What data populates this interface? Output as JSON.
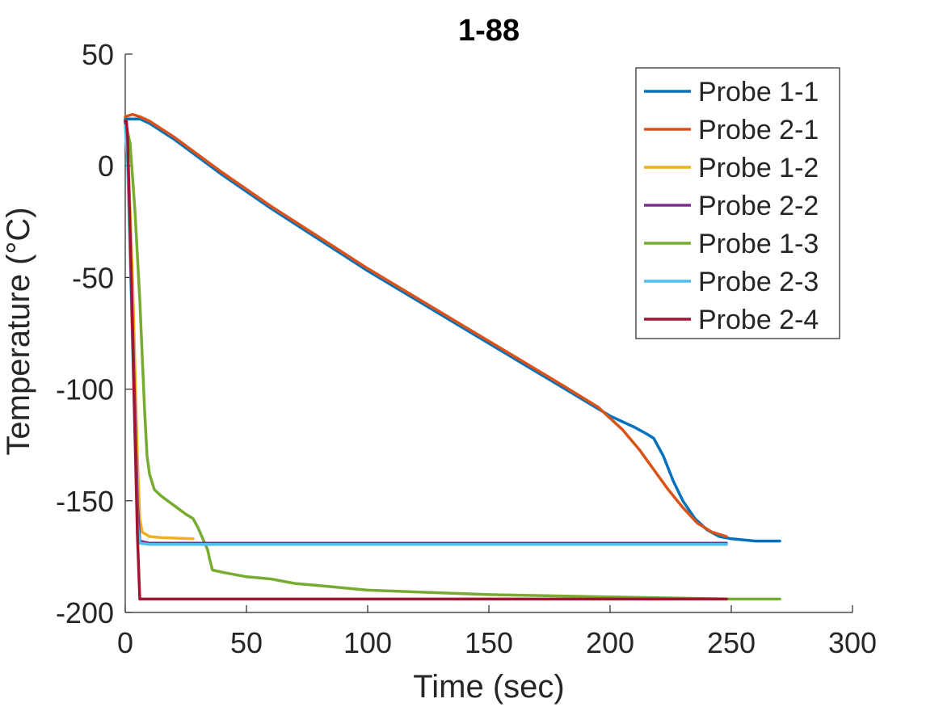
{
  "chart_data": {
    "type": "line",
    "title": "1-88",
    "xlabel": "Time (sec)",
    "ylabel": "Temperature (°C)",
    "xlim": [
      0,
      300
    ],
    "ylim": [
      -200,
      50
    ],
    "xticks": [
      0,
      50,
      100,
      150,
      200,
      250,
      300
    ],
    "yticks": [
      50,
      0,
      -50,
      -100,
      -150,
      -200
    ],
    "grid": false,
    "legend_position": "top-right",
    "series": [
      {
        "name": "Probe 1-1",
        "color": "#0072BD",
        "x": [
          0,
          3,
          6,
          10,
          20,
          40,
          60,
          80,
          100,
          120,
          140,
          160,
          180,
          200,
          210,
          215,
          218,
          222,
          226,
          230,
          235,
          240,
          245,
          250,
          260,
          270
        ],
        "y": [
          21,
          21,
          21,
          19,
          12,
          -4,
          -19,
          -33,
          -47,
          -60,
          -73,
          -86,
          -99,
          -112,
          -117,
          -120,
          -122,
          -130,
          -141,
          -150,
          -158,
          -163,
          -166,
          -167,
          -168,
          -168
        ]
      },
      {
        "name": "Probe 2-1",
        "color": "#D95319",
        "x": [
          0,
          3,
          6,
          10,
          20,
          40,
          60,
          80,
          100,
          120,
          140,
          160,
          180,
          195,
          205,
          212,
          218,
          224,
          230,
          236,
          242,
          248
        ],
        "y": [
          22,
          23,
          22,
          20,
          13,
          -3,
          -18,
          -32,
          -46,
          -59,
          -72,
          -85,
          -98,
          -108,
          -118,
          -127,
          -136,
          -145,
          -153,
          -160,
          -164,
          -166
        ]
      },
      {
        "name": "Probe 1-2",
        "color": "#EDB120",
        "x": [
          0,
          1,
          2,
          3,
          4,
          5,
          6,
          7,
          10,
          15,
          28
        ],
        "y": [
          20,
          5,
          -20,
          -50,
          -90,
          -130,
          -158,
          -164,
          -166,
          -166.5,
          -167
        ]
      },
      {
        "name": "Probe 2-2",
        "color": "#7E2F8E",
        "x": [
          0,
          1,
          2,
          3,
          4,
          5,
          6,
          10,
          100,
          200,
          248
        ],
        "y": [
          20,
          3,
          -30,
          -70,
          -110,
          -150,
          -168,
          -169,
          -169,
          -169,
          -169
        ]
      },
      {
        "name": "Probe 1-3",
        "color": "#77AC30",
        "x": [
          0,
          2,
          4,
          6,
          8,
          9,
          10,
          12,
          15,
          20,
          25,
          28,
          30,
          32,
          34,
          35,
          36,
          40,
          50,
          60,
          70,
          80,
          100,
          150,
          200,
          250,
          270
        ],
        "y": [
          20,
          10,
          -20,
          -60,
          -110,
          -130,
          -138,
          -145,
          -148,
          -152,
          -156,
          -158,
          -162,
          -167,
          -172,
          -177,
          -181,
          -182,
          -184,
          -185,
          -187,
          -188,
          -190,
          -192,
          -193,
          -194,
          -194
        ]
      },
      {
        "name": "Probe 2-3",
        "color": "#4DBEEE",
        "x": [
          0,
          1,
          2,
          3,
          4,
          5,
          6,
          10,
          100,
          200,
          248
        ],
        "y": [
          18,
          0,
          -40,
          -80,
          -120,
          -160,
          -169,
          -169.5,
          -169.5,
          -169.5,
          -169.5
        ]
      },
      {
        "name": "Probe 2-4",
        "color": "#A2142F",
        "x": [
          0,
          0.5,
          1,
          2,
          3,
          4,
          5,
          6,
          10,
          50,
          100,
          150,
          200,
          248
        ],
        "y": [
          20,
          20,
          12,
          -30,
          -75,
          -120,
          -165,
          -194,
          -194,
          -194,
          -194,
          -194,
          -194,
          -194
        ]
      }
    ]
  }
}
